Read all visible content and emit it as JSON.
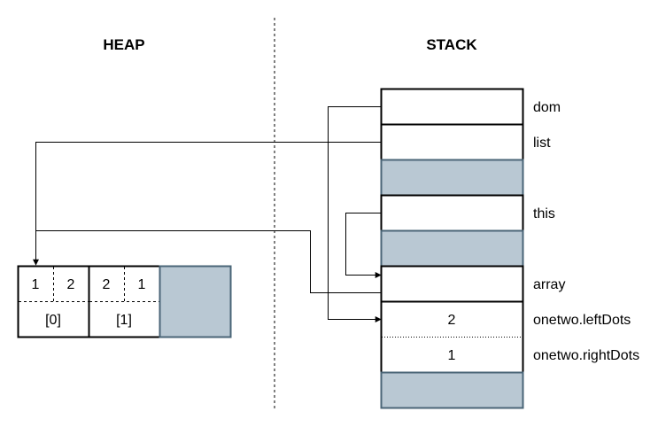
{
  "headers": {
    "heap": "HEAP",
    "stack": "STACK"
  },
  "stack": {
    "labels": {
      "dom": "dom",
      "list": "list",
      "this": "this",
      "array": "array",
      "left_dots": "onetwo.leftDots",
      "right_dots": "onetwo.rightDots"
    },
    "values": {
      "left_dots": "2",
      "right_dots": "1"
    }
  },
  "heap": {
    "cells": [
      {
        "values": [
          "1",
          "2"
        ],
        "index": "[0]"
      },
      {
        "values": [
          "2",
          "1"
        ],
        "index": "[1]"
      }
    ]
  },
  "colors": {
    "filled": "#b9c8d3",
    "filled_stroke": "#4a6577",
    "line": "#000000"
  }
}
